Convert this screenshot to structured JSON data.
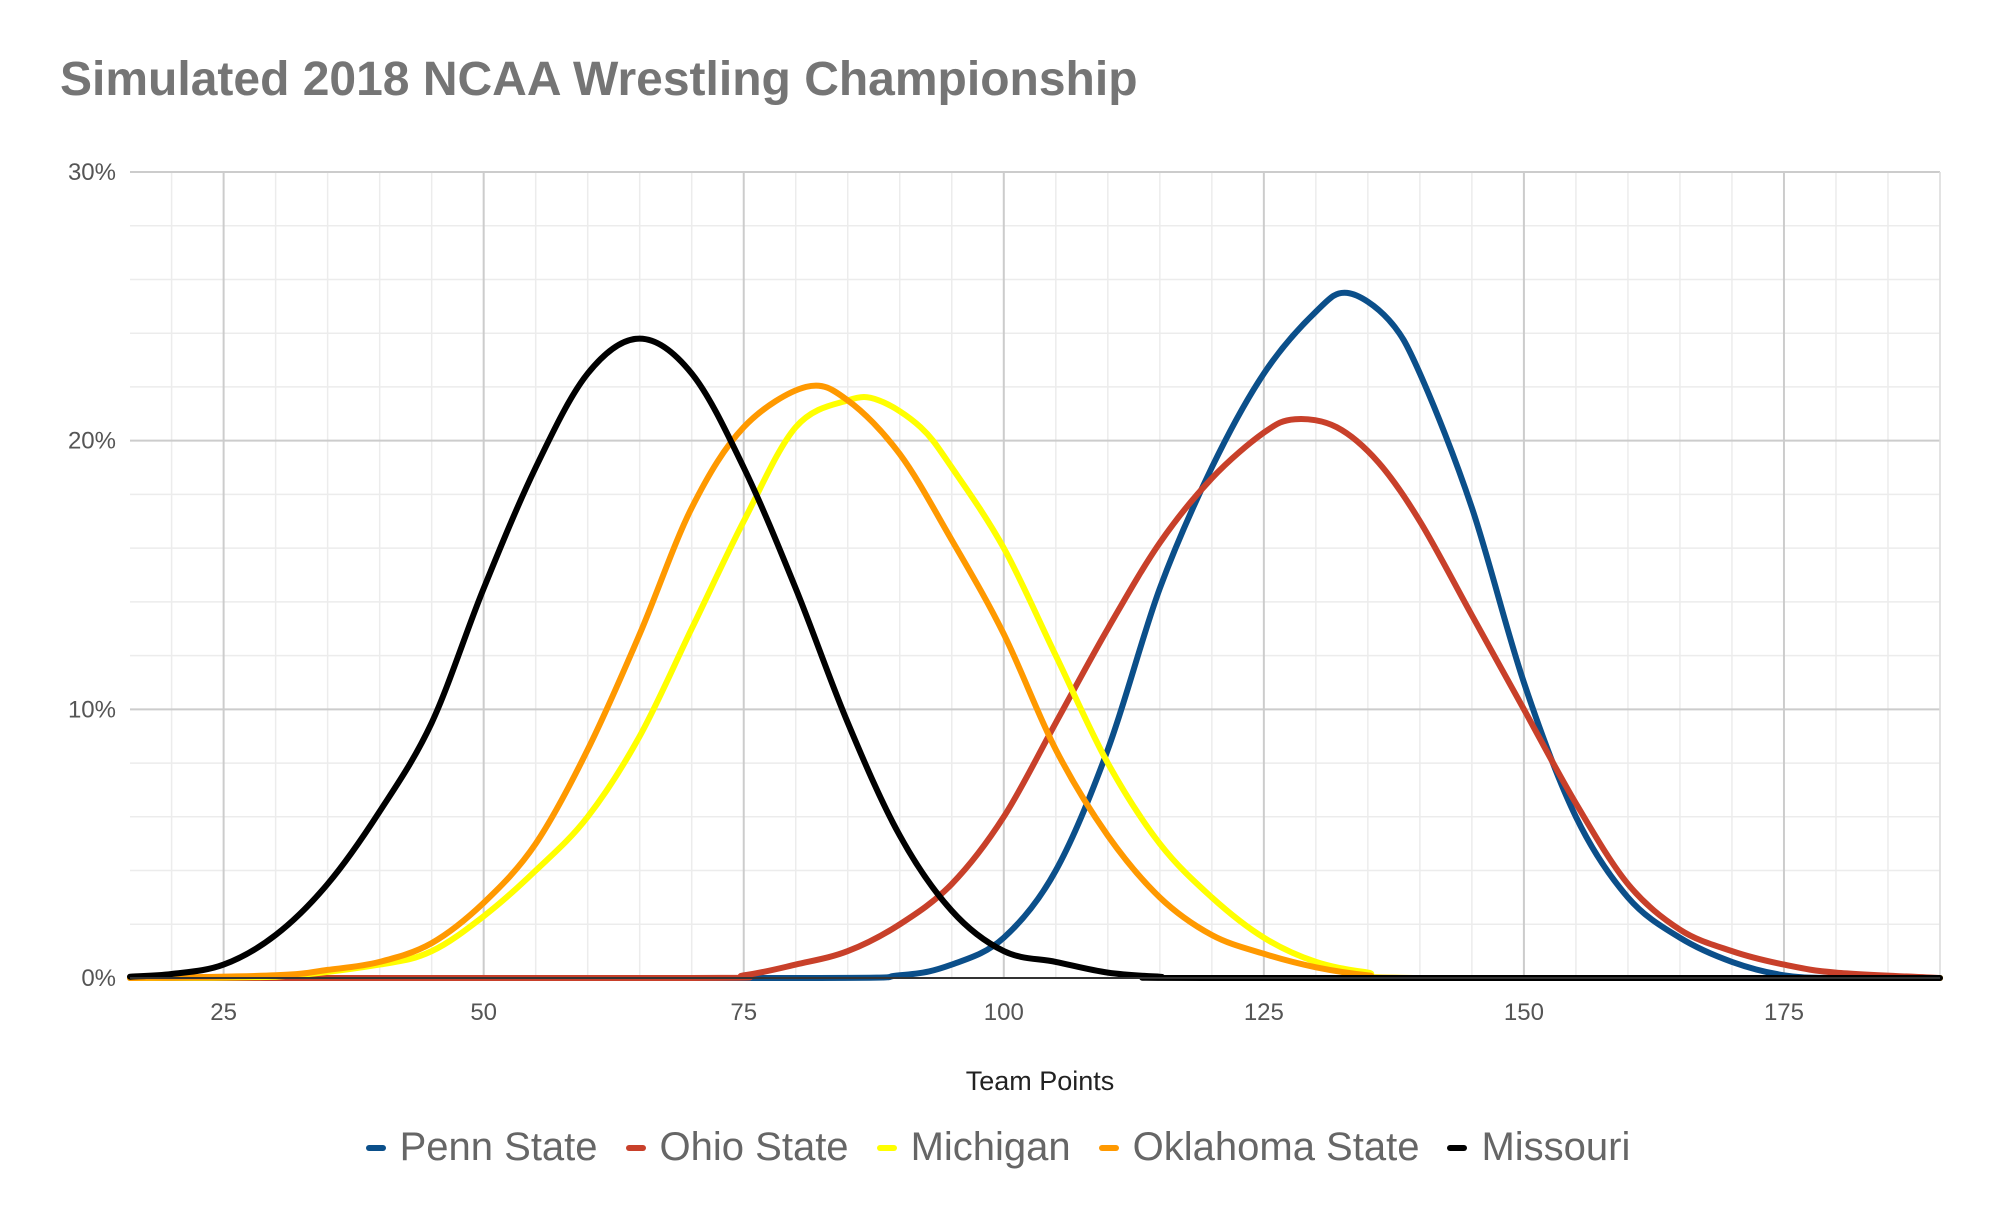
{
  "chart_data": {
    "type": "line",
    "title": "Simulated 2018 NCAA Wrestling Championship",
    "xlabel": "Team Points",
    "ylabel": "",
    "xlim": [
      16,
      190
    ],
    "ylim": [
      0,
      30
    ],
    "x_ticks": [
      "25",
      "50",
      "75",
      "100",
      "125",
      "150",
      "175"
    ],
    "x_tick_values": [
      25,
      50,
      75,
      100,
      125,
      150,
      175
    ],
    "y_ticks": [
      "0%",
      "10%",
      "20%",
      "30%"
    ],
    "y_tick_values": [
      0,
      10,
      20,
      30
    ],
    "grid": true,
    "legend_position": "bottom",
    "series": [
      {
        "name": "Penn State",
        "color": "#0b4f8a",
        "points": [
          [
            16,
            0
          ],
          [
            80,
            0
          ],
          [
            90,
            0.1
          ],
          [
            95,
            0.5
          ],
          [
            100,
            1.5
          ],
          [
            105,
            4
          ],
          [
            110,
            8.5
          ],
          [
            115,
            14.5
          ],
          [
            120,
            19
          ],
          [
            125,
            22.5
          ],
          [
            130,
            24.8
          ],
          [
            133,
            25.5
          ],
          [
            137,
            24.5
          ],
          [
            140,
            22.5
          ],
          [
            145,
            17.5
          ],
          [
            150,
            11
          ],
          [
            155,
            6
          ],
          [
            160,
            3
          ],
          [
            165,
            1.5
          ],
          [
            170,
            0.6
          ],
          [
            175,
            0.1
          ],
          [
            180,
            0
          ],
          [
            190,
            0
          ]
        ]
      },
      {
        "name": "Ohio State",
        "color": "#c8402a",
        "points": [
          [
            16,
            0
          ],
          [
            70,
            0
          ],
          [
            75,
            0.1
          ],
          [
            80,
            0.5
          ],
          [
            85,
            1
          ],
          [
            90,
            2
          ],
          [
            95,
            3.5
          ],
          [
            100,
            6
          ],
          [
            105,
            9.5
          ],
          [
            110,
            13
          ],
          [
            115,
            16.2
          ],
          [
            120,
            18.6
          ],
          [
            125,
            20.3
          ],
          [
            128,
            20.8
          ],
          [
            132,
            20.5
          ],
          [
            136,
            19.2
          ],
          [
            140,
            17
          ],
          [
            145,
            13.5
          ],
          [
            150,
            10
          ],
          [
            155,
            6.5
          ],
          [
            160,
            3.5
          ],
          [
            165,
            1.8
          ],
          [
            170,
            1
          ],
          [
            175,
            0.5
          ],
          [
            180,
            0.2
          ],
          [
            190,
            0
          ]
        ]
      },
      {
        "name": "Michigan",
        "color": "#ffff00",
        "points": [
          [
            16,
            0
          ],
          [
            30,
            0.05
          ],
          [
            40,
            0.5
          ],
          [
            45,
            1
          ],
          [
            50,
            2.3
          ],
          [
            55,
            4
          ],
          [
            60,
            6
          ],
          [
            65,
            9
          ],
          [
            70,
            13
          ],
          [
            75,
            17
          ],
          [
            80,
            20.5
          ],
          [
            85,
            21.5
          ],
          [
            88,
            21.5
          ],
          [
            92,
            20.5
          ],
          [
            95,
            19
          ],
          [
            100,
            16
          ],
          [
            105,
            12
          ],
          [
            110,
            8
          ],
          [
            115,
            5
          ],
          [
            120,
            3
          ],
          [
            125,
            1.5
          ],
          [
            130,
            0.6
          ],
          [
            135,
            0.2
          ],
          [
            140,
            0
          ],
          [
            190,
            0
          ]
        ]
      },
      {
        "name": "Oklahoma State",
        "color": "#ff9900",
        "points": [
          [
            16,
            0
          ],
          [
            30,
            0.1
          ],
          [
            35,
            0.3
          ],
          [
            40,
            0.6
          ],
          [
            45,
            1.3
          ],
          [
            50,
            2.8
          ],
          [
            55,
            5
          ],
          [
            60,
            8.5
          ],
          [
            65,
            12.8
          ],
          [
            70,
            17.5
          ],
          [
            75,
            20.5
          ],
          [
            81,
            22
          ],
          [
            85,
            21.5
          ],
          [
            90,
            19.5
          ],
          [
            95,
            16.3
          ],
          [
            100,
            12.8
          ],
          [
            105,
            8.5
          ],
          [
            110,
            5.3
          ],
          [
            115,
            3
          ],
          [
            120,
            1.6
          ],
          [
            125,
            0.9
          ],
          [
            130,
            0.4
          ],
          [
            135,
            0.1
          ],
          [
            140,
            0
          ],
          [
            190,
            0
          ]
        ]
      },
      {
        "name": "Missouri",
        "color": "#000000",
        "points": [
          [
            16,
            0.05
          ],
          [
            20,
            0.15
          ],
          [
            25,
            0.5
          ],
          [
            30,
            1.6
          ],
          [
            35,
            3.5
          ],
          [
            40,
            6.2
          ],
          [
            45,
            9.5
          ],
          [
            50,
            14.5
          ],
          [
            55,
            19
          ],
          [
            60,
            22.5
          ],
          [
            65,
            23.8
          ],
          [
            70,
            22.5
          ],
          [
            75,
            19
          ],
          [
            80,
            14.5
          ],
          [
            85,
            9.5
          ],
          [
            90,
            5.3
          ],
          [
            95,
            2.5
          ],
          [
            100,
            1
          ],
          [
            105,
            0.6
          ],
          [
            110,
            0.2
          ],
          [
            115,
            0.05
          ],
          [
            120,
            0
          ],
          [
            190,
            0
          ]
        ]
      }
    ]
  }
}
